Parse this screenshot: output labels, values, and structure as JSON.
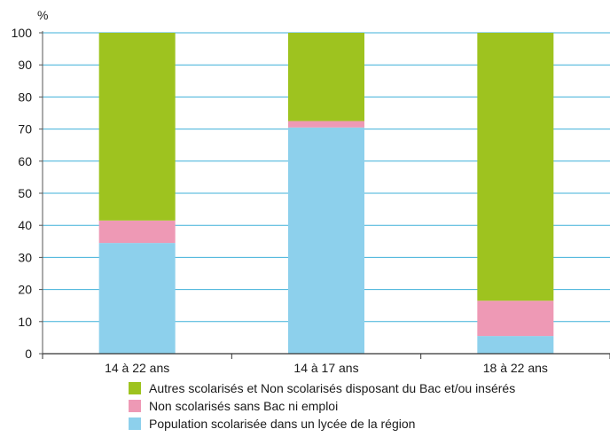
{
  "chart_data": {
    "type": "bar",
    "stacked": true,
    "ylabel": "%",
    "ylim": [
      0,
      100
    ],
    "yticks": [
      0,
      10,
      20,
      30,
      40,
      50,
      60,
      70,
      80,
      90,
      100
    ],
    "categories": [
      "14 à 22 ans",
      "14 à 17 ans",
      "18 à 22 ans"
    ],
    "series": [
      {
        "name": "Population scolarisée dans un lycée de la région",
        "color": "#8dd0ec",
        "values": [
          34.5,
          70.5,
          5.5
        ]
      },
      {
        "name": "Non scolarisés sans Bac ni emploi",
        "color": "#ee99b5",
        "values": [
          7,
          2,
          11
        ]
      },
      {
        "name": "Autres scolarisés et Non scolarisés disposant du Bac et/ou insérés",
        "color": "#9ec31f",
        "values": [
          58.5,
          27.5,
          83.5
        ]
      }
    ],
    "legend_order": [
      2,
      1,
      0
    ],
    "legend_position": "bottom",
    "grid": true,
    "grid_color": "#3fb0d9"
  }
}
